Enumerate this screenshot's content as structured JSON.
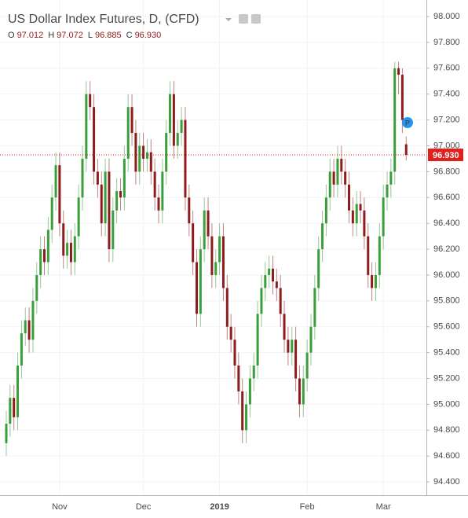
{
  "chart_data": {
    "type": "candlestick",
    "title": "US Dollar Index Futures, D, (CFD)",
    "ohlc_header": [
      {
        "key": "O",
        "label": "97.012"
      },
      {
        "key": "H",
        "label": "97.072"
      },
      {
        "key": "L",
        "label": "96.885"
      },
      {
        "key": "C",
        "label": "96.930"
      }
    ],
    "last_price": {
      "value": 96.93,
      "label": "96.930",
      "color": "#e0201b"
    },
    "up_color": "#3a9e3a",
    "down_color": "#8e1c1c",
    "grid": true,
    "ylim": [
      94.297,
      98.128
    ],
    "yticks": [
      {
        "value": 94.4,
        "label": "94.400"
      },
      {
        "value": 94.6,
        "label": "94.600"
      },
      {
        "value": 94.8,
        "label": "94.800"
      },
      {
        "value": 95.0,
        "label": "95.000"
      },
      {
        "value": 95.2,
        "label": "95.200"
      },
      {
        "value": 95.4,
        "label": "95.400"
      },
      {
        "value": 95.6,
        "label": "95.600"
      },
      {
        "value": 95.8,
        "label": "95.800"
      },
      {
        "value": 96.0,
        "label": "96.000"
      },
      {
        "value": 96.2,
        "label": "96.200"
      },
      {
        "value": 96.4,
        "label": "96.400"
      },
      {
        "value": 96.6,
        "label": "96.600"
      },
      {
        "value": 96.8,
        "label": "96.800"
      },
      {
        "value": 97.0,
        "label": "97.000"
      },
      {
        "value": 97.2,
        "label": "97.200"
      },
      {
        "value": 97.4,
        "label": "97.400"
      },
      {
        "value": 97.6,
        "label": "97.600"
      },
      {
        "value": 97.8,
        "label": "97.800"
      },
      {
        "value": 98.0,
        "label": "98.000"
      }
    ],
    "categories": [
      null,
      null,
      null,
      null,
      null,
      null,
      null,
      null,
      null,
      null,
      null,
      null,
      null,
      null,
      "Nov",
      null,
      null,
      null,
      null,
      null,
      null,
      null,
      null,
      null,
      null,
      null,
      null,
      null,
      null,
      null,
      null,
      null,
      null,
      null,
      null,
      null,
      "Dec",
      null,
      null,
      null,
      null,
      null,
      null,
      null,
      null,
      null,
      null,
      null,
      null,
      null,
      null,
      null,
      null,
      null,
      null,
      null,
      "2019",
      null,
      null,
      null,
      null,
      null,
      null,
      null,
      null,
      null,
      null,
      null,
      null,
      null,
      null,
      null,
      null,
      null,
      null,
      null,
      null,
      null,
      null,
      "Feb",
      null,
      null,
      null,
      null,
      null,
      null,
      null,
      null,
      null,
      null,
      null,
      null,
      null,
      null,
      null,
      null,
      null,
      null,
      null,
      "Mar",
      null,
      null,
      null,
      null,
      null,
      null
    ],
    "open": [
      94.7,
      94.85,
      95.05,
      94.9,
      95.3,
      95.55,
      95.65,
      95.5,
      95.8,
      96.0,
      96.2,
      96.1,
      96.35,
      96.6,
      96.85,
      96.4,
      96.15,
      96.25,
      96.1,
      96.3,
      96.6,
      96.9,
      97.4,
      97.3,
      96.8,
      96.7,
      96.4,
      96.8,
      96.2,
      96.5,
      96.65,
      96.6,
      96.9,
      97.3,
      97.1,
      96.8,
      97.0,
      96.9,
      96.95,
      96.8,
      96.6,
      96.5,
      96.8,
      97.1,
      97.4,
      97.0,
      97.1,
      97.2,
      96.6,
      96.4,
      96.1,
      95.7,
      96.2,
      96.5,
      96.3,
      96.0,
      96.1,
      96.3,
      95.9,
      95.6,
      95.5,
      95.3,
      95.1,
      94.8,
      95.0,
      95.2,
      95.3,
      95.7,
      95.9,
      96.0,
      96.05,
      95.95,
      95.9,
      95.7,
      95.5,
      95.4,
      95.5,
      95.2,
      95.0,
      95.2,
      95.4,
      95.6,
      95.9,
      96.2,
      96.4,
      96.6,
      96.8,
      96.7,
      96.9,
      96.8,
      96.7,
      96.5,
      96.4,
      96.55,
      96.5,
      96.3,
      96.0,
      95.9,
      96.0,
      96.3,
      96.6,
      96.7,
      96.8,
      97.6,
      97.55,
      97.012
    ],
    "high": [
      94.95,
      95.15,
      95.15,
      95.4,
      95.65,
      95.75,
      95.75,
      95.9,
      96.1,
      96.3,
      96.3,
      96.45,
      96.7,
      96.95,
      96.95,
      96.5,
      96.35,
      96.35,
      96.4,
      96.7,
      97.0,
      97.5,
      97.5,
      97.4,
      96.9,
      96.8,
      96.9,
      96.9,
      96.6,
      96.75,
      96.75,
      97.0,
      97.4,
      97.4,
      97.2,
      97.1,
      97.1,
      97.05,
      97.05,
      96.9,
      96.7,
      96.9,
      97.2,
      97.5,
      97.5,
      97.2,
      97.3,
      97.3,
      96.7,
      96.5,
      96.2,
      96.3,
      96.6,
      96.6,
      96.4,
      96.2,
      96.4,
      96.4,
      96.0,
      95.7,
      95.6,
      95.4,
      95.2,
      95.1,
      95.3,
      95.4,
      95.8,
      96.0,
      96.1,
      96.15,
      96.15,
      96.05,
      96.0,
      95.8,
      95.6,
      95.6,
      95.6,
      95.3,
      95.3,
      95.5,
      95.7,
      96.0,
      96.3,
      96.5,
      96.7,
      96.9,
      96.9,
      97.0,
      97.0,
      96.9,
      96.8,
      96.6,
      96.65,
      96.65,
      96.6,
      96.4,
      96.1,
      96.1,
      96.4,
      96.7,
      96.8,
      96.9,
      97.65,
      97.65,
      97.6,
      97.072
    ],
    "low": [
      94.6,
      94.75,
      94.8,
      94.8,
      95.2,
      95.45,
      95.4,
      95.4,
      95.7,
      95.9,
      96.0,
      96.0,
      96.25,
      96.5,
      96.3,
      96.05,
      96.05,
      96.0,
      96.0,
      96.2,
      96.5,
      96.8,
      97.2,
      96.7,
      96.6,
      96.3,
      96.3,
      96.1,
      96.1,
      96.4,
      96.5,
      96.5,
      96.8,
      97.0,
      96.7,
      96.7,
      96.8,
      96.8,
      96.7,
      96.5,
      96.4,
      96.4,
      96.7,
      97.0,
      96.9,
      96.9,
      97.0,
      96.5,
      96.3,
      96.0,
      95.6,
      95.6,
      96.1,
      96.2,
      95.9,
      95.9,
      96.0,
      95.8,
      95.5,
      95.4,
      95.2,
      95.0,
      94.7,
      94.7,
      94.9,
      95.1,
      95.2,
      95.6,
      95.8,
      95.9,
      95.85,
      95.8,
      95.6,
      95.4,
      95.3,
      95.3,
      95.1,
      94.9,
      94.9,
      95.1,
      95.3,
      95.5,
      95.8,
      96.1,
      96.3,
      96.5,
      96.6,
      96.6,
      96.7,
      96.6,
      96.4,
      96.3,
      96.3,
      96.4,
      96.2,
      95.9,
      95.8,
      95.8,
      95.9,
      96.2,
      96.5,
      96.6,
      96.7,
      97.4,
      97.1,
      96.885
    ],
    "close": [
      94.85,
      95.05,
      94.9,
      95.3,
      95.55,
      95.65,
      95.5,
      95.8,
      96.0,
      96.2,
      96.1,
      96.35,
      96.6,
      96.85,
      96.4,
      96.15,
      96.25,
      96.1,
      96.3,
      96.6,
      96.9,
      97.4,
      97.3,
      96.8,
      96.7,
      96.4,
      96.8,
      96.2,
      96.5,
      96.65,
      96.6,
      96.9,
      97.3,
      97.1,
      96.8,
      97.0,
      96.9,
      96.95,
      96.8,
      96.6,
      96.5,
      96.8,
      97.1,
      97.4,
      97.0,
      97.1,
      97.2,
      96.6,
      96.4,
      96.1,
      95.7,
      96.2,
      96.5,
      96.3,
      96.0,
      96.1,
      96.3,
      95.9,
      95.6,
      95.5,
      95.3,
      95.1,
      94.8,
      95.0,
      95.2,
      95.3,
      95.7,
      95.9,
      96.0,
      96.05,
      95.95,
      95.9,
      95.7,
      95.5,
      95.4,
      95.5,
      95.2,
      95.0,
      95.2,
      95.4,
      95.6,
      95.9,
      96.2,
      96.4,
      96.6,
      96.8,
      96.7,
      96.9,
      96.8,
      96.7,
      96.5,
      96.4,
      96.55,
      96.5,
      96.3,
      96.0,
      95.9,
      96.0,
      96.3,
      96.6,
      96.7,
      96.8,
      97.6,
      97.55,
      97.2,
      96.93
    ]
  }
}
